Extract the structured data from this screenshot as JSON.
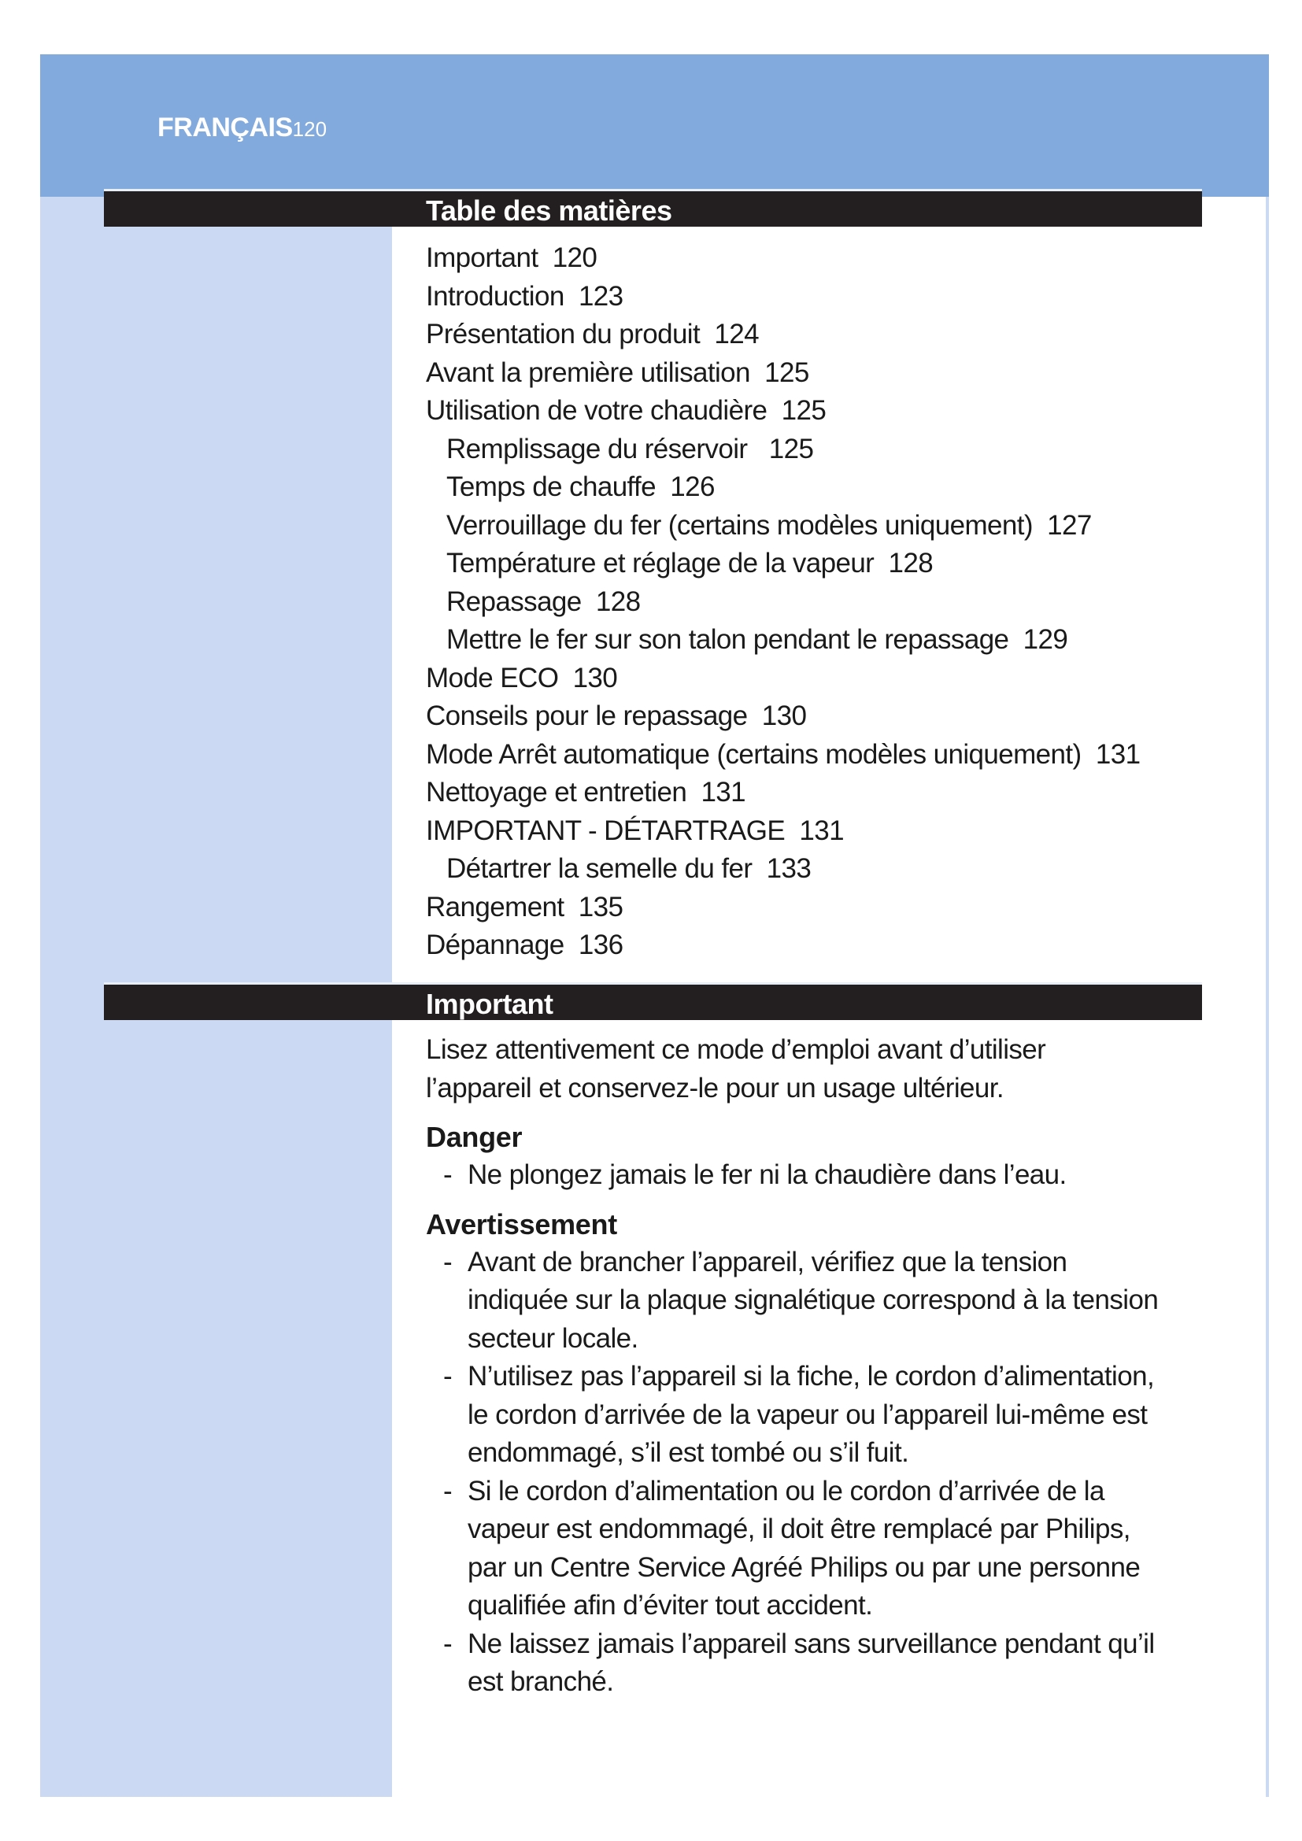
{
  "header": {
    "language": "FRANÇAIS",
    "page_number": "120"
  },
  "colors": {
    "band": "#82aadd",
    "sidebar": "#cbdaf2",
    "heading_bar": "#231f20"
  },
  "toc": {
    "title": "Table des matières",
    "items": [
      {
        "label": "Important  120",
        "level": 1
      },
      {
        "label": "Introduction  123",
        "level": 1
      },
      {
        "label": "Présentation du produit  124",
        "level": 1
      },
      {
        "label": "Avant la première utilisation  125",
        "level": 1
      },
      {
        "label": "Utilisation de votre chaudière  125",
        "level": 1
      },
      {
        "label": "Remplissage du réservoir   125",
        "level": 2
      },
      {
        "label": "Temps de chauffe  126",
        "level": 2
      },
      {
        "label": "Verrouillage du fer (certains modèles uniquement)  127",
        "level": 2
      },
      {
        "label": "Température et réglage de la vapeur  128",
        "level": 2
      },
      {
        "label": "Repassage  128",
        "level": 2
      },
      {
        "label": "Mettre le fer sur son talon pendant le repassage  129",
        "level": 2
      },
      {
        "label": "Mode ECO  130",
        "level": 1
      },
      {
        "label": "Conseils pour le repassage  130",
        "level": 1
      },
      {
        "label": "Mode Arrêt automatique (certains modèles uniquement)  131",
        "level": 1
      },
      {
        "label": "Nettoyage et entretien  131",
        "level": 1
      },
      {
        "label": "IMPORTANT - DÉTARTRAGE  131",
        "level": 1
      },
      {
        "label": "Détartrer la semelle du fer  133",
        "level": 2
      },
      {
        "label": "Rangement  135",
        "level": 1
      },
      {
        "label": "Dépannage  136",
        "level": 1
      }
    ]
  },
  "important": {
    "title": "Important",
    "intro": [
      "Lisez attentivement ce mode d’emploi avant d’utiliser",
      "l’appareil et conservez-le pour un usage ultérieur."
    ],
    "danger": {
      "title": "Danger",
      "bullets": [
        [
          "Ne plongez jamais le fer ni la chaudière dans l’eau."
        ]
      ]
    },
    "warning": {
      "title": "Avertissement",
      "bullets": [
        [
          "Avant de brancher l’appareil, vérifiez que la tension",
          "indiquée sur la plaque signalétique correspond à la tension",
          "secteur locale."
        ],
        [
          "N’utilisez pas l’appareil si la fiche, le cordon d’alimentation,",
          "le cordon d’arrivée de la vapeur ou l’appareil lui-même est",
          "endommagé, s’il est tombé ou s’il fuit."
        ],
        [
          "Si le cordon d’alimentation ou le cordon d’arrivée de la",
          "vapeur est endommagé, il doit être remplacé par Philips,",
          "par un Centre Service Agréé Philips ou par une personne",
          "qualifiée afin d’éviter tout accident."
        ],
        [
          "Ne laissez jamais l’appareil sans surveillance pendant qu’il",
          "est branché."
        ]
      ]
    }
  }
}
